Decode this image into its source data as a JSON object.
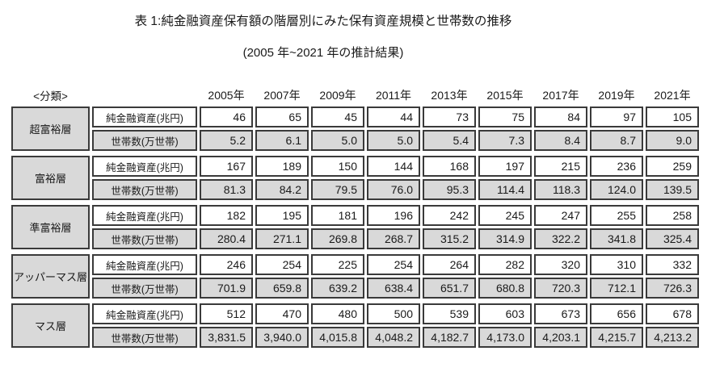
{
  "page": {
    "title": "表 1:純金融資産保有額の階層別にみた保有資産規模と世帯数の推移",
    "subtitle": "(2005 年~2021 年の推計結果)"
  },
  "labels": {
    "classification": "<分類>",
    "assets_row": "純金融資産(兆円)",
    "households_row": "世帯数(万世帯)"
  },
  "colors": {
    "cell_gray": "#d9d9d9",
    "border": "#3a3a3a",
    "background": "#ffffff"
  },
  "chart_data": {
    "type": "table",
    "title": "表 1:純金融資産保有額の階層別にみた保有資産規模と世帯数の推移",
    "subtitle": "(2005 年~2021 年の推計結果)",
    "columns": [
      "2005年",
      "2007年",
      "2009年",
      "2011年",
      "2013年",
      "2015年",
      "2017年",
      "2019年",
      "2021年"
    ],
    "row_metrics": [
      "純金融資産(兆円)",
      "世帯数(万世帯)"
    ],
    "groups": [
      {
        "tier": "超富裕層",
        "assets_trillion_yen": [
          46,
          65,
          45,
          44,
          73,
          75,
          84,
          97,
          105
        ],
        "households_10k": [
          5.2,
          6.1,
          5.0,
          5.0,
          5.4,
          7.3,
          8.4,
          8.7,
          9.0
        ]
      },
      {
        "tier": "富裕層",
        "assets_trillion_yen": [
          167,
          189,
          150,
          144,
          168,
          197,
          215,
          236,
          259
        ],
        "households_10k": [
          81.3,
          84.2,
          79.5,
          76.0,
          95.3,
          114.4,
          118.3,
          124.0,
          139.5
        ]
      },
      {
        "tier": "準富裕層",
        "assets_trillion_yen": [
          182,
          195,
          181,
          196,
          242,
          245,
          247,
          255,
          258
        ],
        "households_10k": [
          280.4,
          271.1,
          269.8,
          268.7,
          315.2,
          314.9,
          322.2,
          341.8,
          325.4
        ]
      },
      {
        "tier": "アッパーマス層",
        "assets_trillion_yen": [
          246,
          254,
          225,
          254,
          264,
          282,
          320,
          310,
          332
        ],
        "households_10k": [
          701.9,
          659.8,
          639.2,
          638.4,
          651.7,
          680.8,
          720.3,
          712.1,
          726.3
        ]
      },
      {
        "tier": "マス層",
        "assets_trillion_yen": [
          512,
          470,
          480,
          500,
          539,
          603,
          673,
          656,
          678
        ],
        "households_10k": [
          3831.5,
          3940.0,
          4015.8,
          4048.2,
          4182.7,
          4173.0,
          4203.1,
          4215.7,
          4213.2
        ]
      }
    ]
  }
}
